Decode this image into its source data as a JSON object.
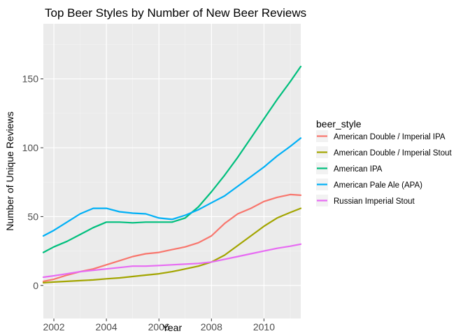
{
  "chart_data": {
    "type": "line",
    "title": "Top Beer Styles by Number of New Beer Reviews",
    "xlabel": "Year",
    "ylabel": "Number of Unique Reviews",
    "xlim": [
      2001.6,
      2011.4
    ],
    "ylim": [
      -24,
      190
    ],
    "x_ticks": [
      2002,
      2004,
      2006,
      2008,
      2010
    ],
    "y_ticks": [
      0,
      50,
      100,
      150
    ],
    "grid": true,
    "background": "#ebebeb",
    "legend": {
      "title": "beer_style",
      "position": "right"
    },
    "series": [
      {
        "name": "American Double / Imperial IPA",
        "color": "#f8766d",
        "points": [
          [
            2001.6,
            3
          ],
          [
            2002,
            4.5
          ],
          [
            2002.5,
            7.5
          ],
          [
            2003,
            10
          ],
          [
            2003.5,
            12
          ],
          [
            2004,
            15
          ],
          [
            2004.5,
            18
          ],
          [
            2005,
            21
          ],
          [
            2005.5,
            23
          ],
          [
            2006,
            24
          ],
          [
            2006.5,
            26
          ],
          [
            2007,
            28
          ],
          [
            2007.5,
            31
          ],
          [
            2008,
            36
          ],
          [
            2008.5,
            45
          ],
          [
            2009,
            52
          ],
          [
            2009.5,
            56
          ],
          [
            2010,
            61
          ],
          [
            2010.5,
            64
          ],
          [
            2011,
            66
          ],
          [
            2011.4,
            65.5
          ]
        ]
      },
      {
        "name": "American Double / Imperial Stout",
        "color": "#a3a500",
        "points": [
          [
            2001.6,
            2
          ],
          [
            2002,
            2.5
          ],
          [
            2002.5,
            3
          ],
          [
            2003,
            3.5
          ],
          [
            2003.5,
            4
          ],
          [
            2004,
            4.8
          ],
          [
            2004.5,
            5.5
          ],
          [
            2005,
            6.5
          ],
          [
            2005.5,
            7.5
          ],
          [
            2006,
            8.5
          ],
          [
            2006.5,
            10
          ],
          [
            2007,
            12
          ],
          [
            2007.5,
            14
          ],
          [
            2008,
            17
          ],
          [
            2008.5,
            22
          ],
          [
            2009,
            29
          ],
          [
            2009.5,
            36
          ],
          [
            2010,
            43
          ],
          [
            2010.5,
            49
          ],
          [
            2011,
            53
          ],
          [
            2011.4,
            56
          ]
        ]
      },
      {
        "name": "American IPA",
        "color": "#00bf7d",
        "points": [
          [
            2001.6,
            24
          ],
          [
            2002,
            28
          ],
          [
            2002.5,
            32
          ],
          [
            2003,
            37
          ],
          [
            2003.5,
            42
          ],
          [
            2004,
            46
          ],
          [
            2004.5,
            46
          ],
          [
            2005,
            45.5
          ],
          [
            2005.5,
            46
          ],
          [
            2006,
            46
          ],
          [
            2006.5,
            46
          ],
          [
            2007,
            49
          ],
          [
            2007.5,
            57
          ],
          [
            2008,
            68
          ],
          [
            2008.5,
            80
          ],
          [
            2009,
            93
          ],
          [
            2009.5,
            107
          ],
          [
            2010,
            121
          ],
          [
            2010.5,
            135
          ],
          [
            2011,
            148
          ],
          [
            2011.4,
            159
          ]
        ]
      },
      {
        "name": "American Pale Ale (APA)",
        "color": "#00b0f6",
        "points": [
          [
            2001.6,
            36
          ],
          [
            2002,
            40
          ],
          [
            2002.5,
            46
          ],
          [
            2003,
            52
          ],
          [
            2003.5,
            56
          ],
          [
            2004,
            56
          ],
          [
            2004.5,
            53.5
          ],
          [
            2005,
            52.5
          ],
          [
            2005.5,
            52
          ],
          [
            2006,
            49
          ],
          [
            2006.5,
            48
          ],
          [
            2007,
            51
          ],
          [
            2007.5,
            55
          ],
          [
            2008,
            60
          ],
          [
            2008.5,
            65
          ],
          [
            2009,
            72
          ],
          [
            2009.5,
            79
          ],
          [
            2010,
            86
          ],
          [
            2010.5,
            94
          ],
          [
            2011,
            101
          ],
          [
            2011.4,
            107
          ]
        ]
      },
      {
        "name": "Russian Imperial Stout",
        "color": "#e76bf3",
        "points": [
          [
            2001.6,
            6
          ],
          [
            2002,
            7
          ],
          [
            2002.5,
            8.5
          ],
          [
            2003,
            10
          ],
          [
            2003.5,
            11
          ],
          [
            2004,
            12
          ],
          [
            2004.5,
            13
          ],
          [
            2005,
            14
          ],
          [
            2005.5,
            14
          ],
          [
            2006,
            14.5
          ],
          [
            2006.5,
            15
          ],
          [
            2007,
            15.5
          ],
          [
            2007.5,
            16
          ],
          [
            2008,
            17
          ],
          [
            2008.5,
            19
          ],
          [
            2009,
            21
          ],
          [
            2009.5,
            23
          ],
          [
            2010,
            25
          ],
          [
            2010.5,
            27
          ],
          [
            2011,
            28.5
          ],
          [
            2011.4,
            30
          ]
        ]
      }
    ]
  }
}
